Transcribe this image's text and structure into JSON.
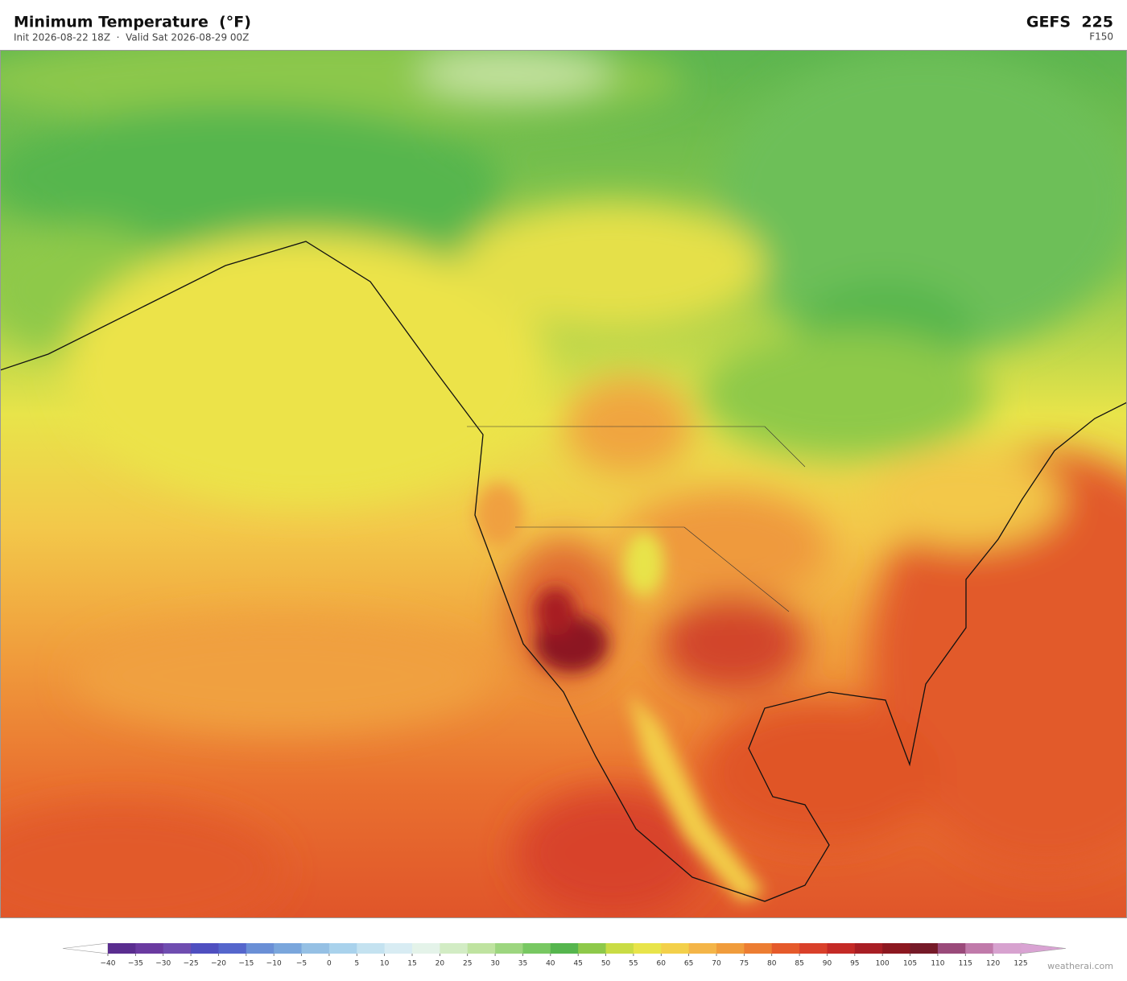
{
  "header": {
    "title": "Minimum Temperature  (°F)",
    "subtitle": "Init 2026-08-22 18Z  ·  Valid Sat 2026-08-29 00Z",
    "model": "GEFS  225",
    "forecast_hour": "F150"
  },
  "colorbar": {
    "ticks": [
      {
        "value": -40,
        "label": "−40"
      },
      {
        "value": -35,
        "label": "−35"
      },
      {
        "value": -30,
        "label": "−30"
      },
      {
        "value": -25,
        "label": "−25"
      },
      {
        "value": -20,
        "label": "−20"
      },
      {
        "value": -15,
        "label": "−15"
      },
      {
        "value": -10,
        "label": "−10"
      },
      {
        "value": -5,
        "label": "−5"
      },
      0,
      5,
      10,
      15,
      20,
      25,
      30,
      35,
      40,
      45,
      50,
      55,
      60,
      65,
      70,
      75,
      80,
      85,
      90,
      95,
      100,
      105,
      110,
      115,
      120,
      125
    ],
    "colors": [
      "#5a2d8f",
      "#6a3aa0",
      "#6f4db0",
      "#4f4fc0",
      "#5566cc",
      "#6a8fd6",
      "#7aa6dc",
      "#95c0e4",
      "#a9d2ec",
      "#c4e2f0",
      "#d8ecf3",
      "#e4f3e9",
      "#d2ecc4",
      "#bfe3a0",
      "#9dd67f",
      "#78c862",
      "#56b64e",
      "#8ec94a",
      "#c9dc45",
      "#e8e44a",
      "#f3d04a",
      "#f4b548",
      "#f09c3c",
      "#ec7d32",
      "#e55a2b",
      "#d9402a",
      "#c42a26",
      "#a81e24",
      "#8c1820",
      "#751a28",
      "#9a4a7a",
      "#c07aaa",
      "#d7a2cf"
    ],
    "under_color": "#ffffff",
    "over_color": "#d9a3d3"
  },
  "footer": {
    "credit": "weatherai.com"
  }
}
